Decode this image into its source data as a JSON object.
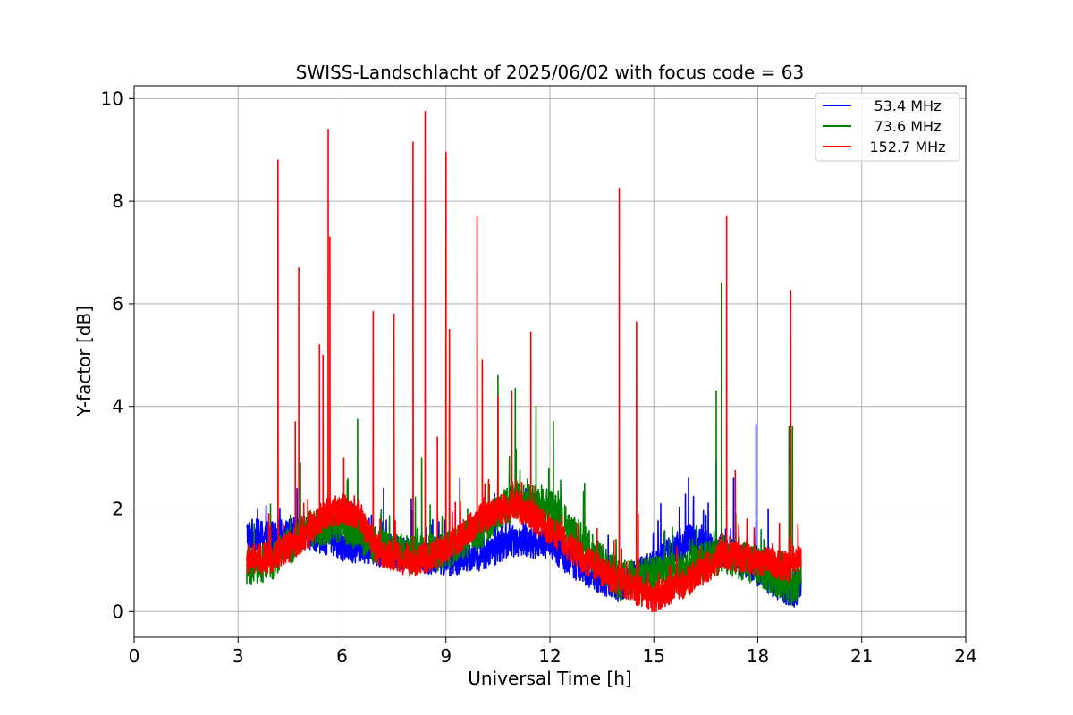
{
  "chart_data": {
    "type": "line",
    "title": "SWISS-Landschlacht of 2025/06/02 with focus code = 63",
    "xlabel": "Universal Time [h]",
    "ylabel": "Y-factor [dB]",
    "xlim": [
      0,
      24
    ],
    "ylim": [
      -0.5,
      10.25
    ],
    "xticks": [
      0,
      3,
      6,
      9,
      12,
      15,
      18,
      21,
      24
    ],
    "yticks": [
      0,
      2,
      4,
      6,
      8,
      10
    ],
    "grid": true,
    "legend_position": "top-right",
    "x_start": 3.25,
    "x_end": 19.25,
    "series": [
      {
        "name": "53.4 MHz",
        "color": "#0000ff",
        "baseline": [
          [
            3.25,
            1.5
          ],
          [
            4.0,
            1.45
          ],
          [
            5.0,
            1.55
          ],
          [
            6.0,
            1.3
          ],
          [
            7.0,
            1.2
          ],
          [
            8.0,
            1.1
          ],
          [
            9.0,
            1.0
          ],
          [
            10.0,
            1.1
          ],
          [
            11.0,
            1.4
          ],
          [
            12.0,
            1.3
          ],
          [
            13.0,
            0.8
          ],
          [
            14.0,
            0.5
          ],
          [
            15.0,
            0.9
          ],
          [
            16.0,
            1.4
          ],
          [
            17.0,
            1.2
          ],
          [
            18.0,
            0.8
          ],
          [
            19.0,
            0.35
          ],
          [
            19.25,
            0.5
          ]
        ],
        "spikes": [
          [
            4.7,
            2.4
          ],
          [
            6.3,
            2.1
          ],
          [
            7.2,
            2.4
          ],
          [
            8.0,
            2.2
          ],
          [
            9.4,
            2.6
          ],
          [
            10.4,
            2.3
          ],
          [
            11.3,
            2.4
          ],
          [
            15.2,
            2.1
          ],
          [
            16.0,
            2.6
          ],
          [
            16.8,
            2.9
          ],
          [
            17.3,
            2.6
          ],
          [
            17.95,
            3.65
          ],
          [
            18.3,
            2.0
          ]
        ]
      },
      {
        "name": "73.6 MHz",
        "color": "#008000",
        "baseline": [
          [
            3.25,
            0.85
          ],
          [
            4.0,
            1.0
          ],
          [
            5.0,
            1.6
          ],
          [
            6.0,
            1.7
          ],
          [
            7.0,
            1.3
          ],
          [
            8.0,
            1.1
          ],
          [
            9.0,
            1.2
          ],
          [
            10.0,
            1.6
          ],
          [
            11.0,
            2.2
          ],
          [
            12.0,
            2.0
          ],
          [
            13.0,
            1.3
          ],
          [
            14.0,
            0.6
          ],
          [
            15.0,
            0.7
          ],
          [
            16.0,
            0.9
          ],
          [
            17.0,
            1.1
          ],
          [
            18.0,
            0.9
          ],
          [
            19.0,
            0.45
          ],
          [
            19.25,
            0.6
          ]
        ],
        "spikes": [
          [
            4.8,
            2.9
          ],
          [
            6.45,
            3.75
          ],
          [
            8.3,
            3.0
          ],
          [
            9.1,
            4.0
          ],
          [
            10.5,
            4.6
          ],
          [
            11.0,
            4.35
          ],
          [
            11.6,
            4.0
          ],
          [
            12.1,
            3.7
          ],
          [
            13.0,
            2.5
          ],
          [
            16.8,
            4.3
          ],
          [
            16.95,
            6.4
          ],
          [
            18.9,
            3.6
          ],
          [
            19.0,
            3.6
          ]
        ]
      },
      {
        "name": "152.7 MHz",
        "color": "#ff0000",
        "baseline": [
          [
            3.25,
            1.0
          ],
          [
            4.0,
            1.05
          ],
          [
            5.0,
            1.5
          ],
          [
            5.5,
            1.9
          ],
          [
            6.0,
            2.0
          ],
          [
            6.5,
            1.9
          ],
          [
            7.0,
            1.2
          ],
          [
            8.0,
            0.95
          ],
          [
            9.0,
            1.2
          ],
          [
            10.0,
            1.8
          ],
          [
            11.0,
            2.1
          ],
          [
            12.0,
            1.6
          ],
          [
            13.0,
            1.0
          ],
          [
            14.0,
            0.6
          ],
          [
            15.0,
            0.25
          ],
          [
            16.0,
            0.6
          ],
          [
            17.0,
            1.1
          ],
          [
            18.0,
            1.0
          ],
          [
            19.0,
            0.85
          ],
          [
            19.25,
            1.0
          ]
        ],
        "spikes": [
          [
            4.15,
            8.8
          ],
          [
            4.75,
            6.7
          ],
          [
            4.65,
            3.7
          ],
          [
            5.35,
            5.2
          ],
          [
            5.45,
            5.0
          ],
          [
            5.6,
            9.4
          ],
          [
            5.65,
            7.3
          ],
          [
            6.05,
            3.0
          ],
          [
            6.9,
            5.85
          ],
          [
            7.5,
            5.8
          ],
          [
            8.05,
            9.15
          ],
          [
            8.4,
            9.75
          ],
          [
            8.75,
            3.4
          ],
          [
            9.0,
            8.95
          ],
          [
            9.1,
            5.5
          ],
          [
            9.9,
            7.7
          ],
          [
            10.05,
            4.9
          ],
          [
            10.5,
            4.2
          ],
          [
            10.9,
            4.3
          ],
          [
            11.45,
            5.45
          ],
          [
            14.0,
            8.25
          ],
          [
            14.5,
            5.65
          ],
          [
            14.55,
            1.9
          ],
          [
            17.1,
            7.7
          ],
          [
            17.35,
            2.75
          ],
          [
            18.95,
            6.25
          ]
        ]
      }
    ]
  }
}
